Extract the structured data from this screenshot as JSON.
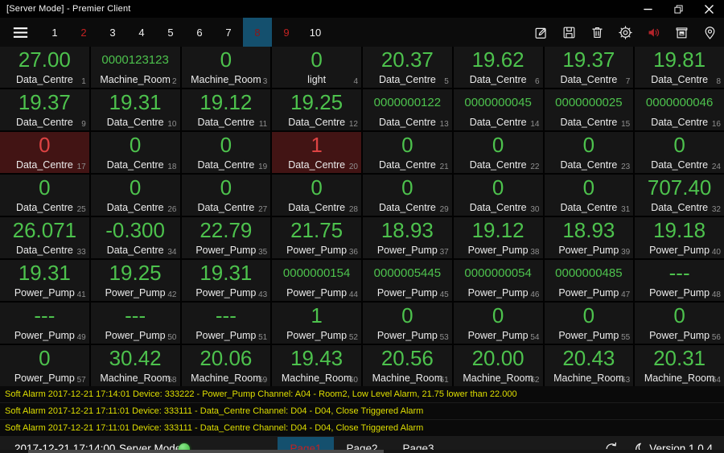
{
  "window": {
    "title": "[Server Mode] - Premier Client",
    "controls": [
      "minimize",
      "restore",
      "close"
    ]
  },
  "colors": {
    "value_green": "#4dc24d",
    "alarm_value_red": "#de4343",
    "alarm_cell_bg": "#421414",
    "accent_blue": "#14506e",
    "alarm_text_yellow": "#dfdf00",
    "tab_red": "#c32222",
    "sound_icon_red": "#b3232a"
  },
  "tabbar": {
    "menu_icon": "hamburger-menu",
    "tabs": [
      {
        "label": "1"
      },
      {
        "label": "2",
        "alarm": true
      },
      {
        "label": "3"
      },
      {
        "label": "4"
      },
      {
        "label": "5"
      },
      {
        "label": "6"
      },
      {
        "label": "7"
      },
      {
        "label": "8",
        "alarm": true,
        "selected": true
      },
      {
        "label": "9",
        "alarm": true
      },
      {
        "label": "10"
      }
    ],
    "toolbar_icons": [
      {
        "name": "edit"
      },
      {
        "name": "save"
      },
      {
        "name": "trash"
      },
      {
        "name": "settings"
      },
      {
        "name": "sound",
        "red": true
      },
      {
        "name": "snapshot"
      },
      {
        "name": "location"
      }
    ]
  },
  "grid": {
    "columns": 8,
    "cells": [
      {
        "value": "27.00",
        "label": "Data_Centre",
        "index": 1
      },
      {
        "value": "0000123123",
        "label": "Machine_Room",
        "index": 2
      },
      {
        "value": "0",
        "label": "Machine_Room",
        "index": 3
      },
      {
        "value": "0",
        "label": "light",
        "index": 4
      },
      {
        "value": "20.37",
        "label": "Data_Centre",
        "index": 5
      },
      {
        "value": "19.62",
        "label": "Data_Centre",
        "index": 6
      },
      {
        "value": "19.37",
        "label": "Data_Centre",
        "index": 7
      },
      {
        "value": "19.81",
        "label": "Data_Centre",
        "index": 8
      },
      {
        "value": "19.37",
        "label": "Data_Centre",
        "index": 9
      },
      {
        "value": "19.31",
        "label": "Data_Centre",
        "index": 10
      },
      {
        "value": "19.12",
        "label": "Data_Centre",
        "index": 11
      },
      {
        "value": "19.25",
        "label": "Data_Centre",
        "index": 12
      },
      {
        "value": "0000000122",
        "label": "Data_Centre",
        "index": 13
      },
      {
        "value": "0000000045",
        "label": "Data_Centre",
        "index": 14
      },
      {
        "value": "0000000025",
        "label": "Data_Centre",
        "index": 15
      },
      {
        "value": "0000000046",
        "label": "Data_Centre",
        "index": 16
      },
      {
        "value": "0",
        "label": "Data_Centre",
        "index": 17,
        "alarm": true
      },
      {
        "value": "0",
        "label": "Data_Centre",
        "index": 18
      },
      {
        "value": "0",
        "label": "Data_Centre",
        "index": 19
      },
      {
        "value": "1",
        "label": "Data_Centre",
        "index": 20,
        "alarm": true
      },
      {
        "value": "0",
        "label": "Data_Centre",
        "index": 21
      },
      {
        "value": "0",
        "label": "Data_Centre",
        "index": 22
      },
      {
        "value": "0",
        "label": "Data_Centre",
        "index": 23
      },
      {
        "value": "0",
        "label": "Data_Centre",
        "index": 24
      },
      {
        "value": "0",
        "label": "Data_Centre",
        "index": 25
      },
      {
        "value": "0",
        "label": "Data_Centre",
        "index": 26
      },
      {
        "value": "0",
        "label": "Data_Centre",
        "index": 27
      },
      {
        "value": "0",
        "label": "Data_Centre",
        "index": 28
      },
      {
        "value": "0",
        "label": "Data_Centre",
        "index": 29
      },
      {
        "value": "0",
        "label": "Data_Centre",
        "index": 30
      },
      {
        "value": "0",
        "label": "Data_Centre",
        "index": 31
      },
      {
        "value": "707.40",
        "label": "Data_Centre",
        "index": 32
      },
      {
        "value": "26.071",
        "label": "Data_Centre",
        "index": 33
      },
      {
        "value": "-0.300",
        "label": "Data_Centre",
        "index": 34
      },
      {
        "value": "22.79",
        "label": "Power_Pump",
        "index": 35
      },
      {
        "value": "21.75",
        "label": "Power_Pump",
        "index": 36
      },
      {
        "value": "18.93",
        "label": "Power_Pump",
        "index": 37
      },
      {
        "value": "19.12",
        "label": "Power_Pump",
        "index": 38
      },
      {
        "value": "18.93",
        "label": "Power_Pump",
        "index": 39
      },
      {
        "value": "19.18",
        "label": "Power_Pump",
        "index": 40
      },
      {
        "value": "19.31",
        "label": "Power_Pump",
        "index": 41
      },
      {
        "value": "19.25",
        "label": "Power_Pump",
        "index": 42
      },
      {
        "value": "19.31",
        "label": "Power_Pump",
        "index": 43
      },
      {
        "value": "0000000154",
        "label": "Power_Pump",
        "index": 44
      },
      {
        "value": "0000005445",
        "label": "Power_Pump",
        "index": 45
      },
      {
        "value": "0000000054",
        "label": "Power_Pump",
        "index": 46
      },
      {
        "value": "0000000485",
        "label": "Power_Pump",
        "index": 47
      },
      {
        "value": "---",
        "label": "Power_Pump",
        "index": 48
      },
      {
        "value": "---",
        "label": "Power_Pump",
        "index": 49
      },
      {
        "value": "---",
        "label": "Power_Pump",
        "index": 50
      },
      {
        "value": "---",
        "label": "Power_Pump",
        "index": 51
      },
      {
        "value": "1",
        "label": "Power_Pump",
        "index": 52
      },
      {
        "value": "0",
        "label": "Power_Pump",
        "index": 53
      },
      {
        "value": "0",
        "label": "Power_Pump",
        "index": 54
      },
      {
        "value": "0",
        "label": "Power_Pump",
        "index": 55
      },
      {
        "value": "0",
        "label": "Power_Pump",
        "index": 56
      },
      {
        "value": "0",
        "label": "Power_Pump",
        "index": 57
      },
      {
        "value": "30.42",
        "label": "Machine_Room",
        "index": 58
      },
      {
        "value": "20.06",
        "label": "Machine_Room",
        "index": 59
      },
      {
        "value": "19.43",
        "label": "Machine_Room",
        "index": 60
      },
      {
        "value": "20.56",
        "label": "Machine_Room",
        "index": 61
      },
      {
        "value": "20.00",
        "label": "Machine_Room",
        "index": 62
      },
      {
        "value": "20.43",
        "label": "Machine_Room",
        "index": 63
      },
      {
        "value": "20.31",
        "label": "Machine_Room",
        "index": 64
      }
    ]
  },
  "alarms": [
    "Soft Alarm 2017-12-21 17:14:01 Device: 333222 - Power_Pump Channel: A04 - Room2, Low Level Alarm, 21.75 lower than 22.000",
    "Soft Alarm 2017-12-21 17:11:01 Device: 333111 - Data_Centre Channel: D04 - D04, Close Triggered Alarm",
    "Soft Alarm 2017-12-21 17:11:01 Device: 333111 - Data_Centre Channel: D04 - D04, Close Triggered Alarm"
  ],
  "statusbar": {
    "time": "2017-12-21 17:14:00",
    "mode": "Server Mode",
    "status_dot": "green",
    "pages": [
      {
        "label": "Page1",
        "active": true
      },
      {
        "label": "Page2"
      },
      {
        "label": "Page3"
      }
    ],
    "icons": [
      "sync",
      "moon"
    ],
    "version": "Version 1.0.4"
  }
}
